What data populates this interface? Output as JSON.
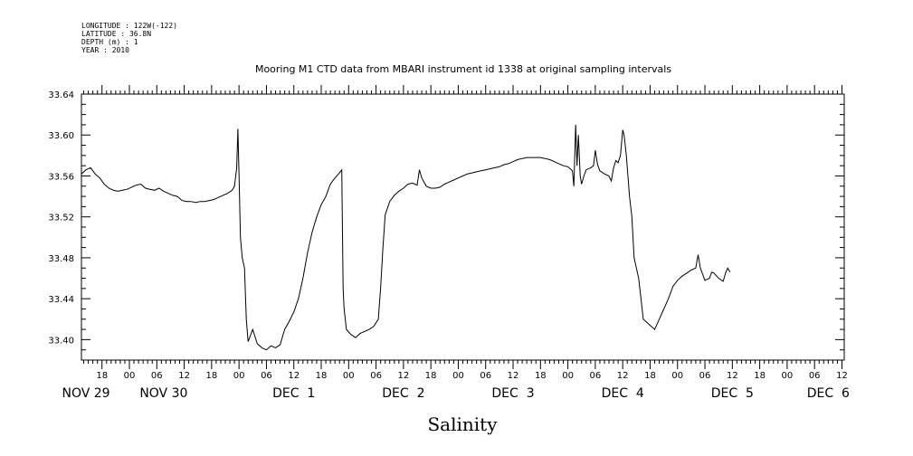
{
  "chart_data": {
    "type": "line",
    "meta": [
      "LONGITUDE : 122W(-122)",
      "LATITUDE : 36.8N",
      "DEPTH (m) : 1",
      "YEAR : 2010"
    ],
    "title": "Mooring M1 CTD data from MBARI instrument id 1338 at original sampling intervals",
    "xlabel": "Salinity",
    "ylabel": "",
    "x_unit": "hours from 2010-11-29 00:00",
    "xlim": [
      13.5,
      180.5
    ],
    "ylim": [
      33.38,
      33.64
    ],
    "yticks": [
      "33.40",
      "33.44",
      "33.48",
      "33.52",
      "33.56",
      "33.60",
      "33.64"
    ],
    "hour_ticks": [
      {
        "x": 18,
        "label": "18"
      },
      {
        "x": 24,
        "label": "00"
      },
      {
        "x": 30,
        "label": "06"
      },
      {
        "x": 36,
        "label": "12"
      },
      {
        "x": 42,
        "label": "18"
      },
      {
        "x": 48,
        "label": "00"
      },
      {
        "x": 54,
        "label": "06"
      },
      {
        "x": 60,
        "label": "12"
      },
      {
        "x": 66,
        "label": "18"
      },
      {
        "x": 72,
        "label": "00"
      },
      {
        "x": 78,
        "label": "06"
      },
      {
        "x": 84,
        "label": "12"
      },
      {
        "x": 90,
        "label": "18"
      },
      {
        "x": 96,
        "label": "00"
      },
      {
        "x": 102,
        "label": "06"
      },
      {
        "x": 108,
        "label": "12"
      },
      {
        "x": 114,
        "label": "18"
      },
      {
        "x": 120,
        "label": "00"
      },
      {
        "x": 126,
        "label": "06"
      },
      {
        "x": 132,
        "label": "12"
      },
      {
        "x": 138,
        "label": "18"
      },
      {
        "x": 144,
        "label": "00"
      },
      {
        "x": 150,
        "label": "06"
      },
      {
        "x": 156,
        "label": "12"
      },
      {
        "x": 162,
        "label": "18"
      },
      {
        "x": 168,
        "label": "00"
      },
      {
        "x": 174,
        "label": "06"
      },
      {
        "x": 180,
        "label": "12"
      }
    ],
    "day_labels": [
      {
        "x": 14.5,
        "label": "NOV 29"
      },
      {
        "x": 31.5,
        "label": "NOV 30"
      },
      {
        "x": 60,
        "label": "DEC  1"
      },
      {
        "x": 84,
        "label": "DEC  2"
      },
      {
        "x": 108,
        "label": "DEC  3"
      },
      {
        "x": 132,
        "label": "DEC  4"
      },
      {
        "x": 156,
        "label": "DEC  5"
      },
      {
        "x": 177,
        "label": "DEC  6"
      }
    ],
    "series": [
      {
        "values": [
          [
            13.5,
            33.562
          ],
          [
            14.5,
            33.566
          ],
          [
            15.5,
            33.568
          ],
          [
            16.5,
            33.562
          ],
          [
            17.5,
            33.558
          ],
          [
            18.5,
            33.552
          ],
          [
            19.5,
            33.548
          ],
          [
            20.5,
            33.546
          ],
          [
            21.5,
            33.545
          ],
          [
            22.5,
            33.546
          ],
          [
            23.5,
            33.547
          ],
          [
            24.5,
            33.549
          ],
          [
            25.5,
            33.551
          ],
          [
            26.5,
            33.552
          ],
          [
            27.5,
            33.548
          ],
          [
            28.5,
            33.547
          ],
          [
            29.5,
            33.546
          ],
          [
            30.5,
            33.548
          ],
          [
            31.5,
            33.545
          ],
          [
            32.5,
            33.543
          ],
          [
            33.5,
            33.541
          ],
          [
            34.5,
            33.54
          ],
          [
            35.5,
            33.536
          ],
          [
            36.5,
            33.535
          ],
          [
            37.5,
            33.535
          ],
          [
            38.5,
            33.534
          ],
          [
            39.5,
            33.535
          ],
          [
            40.5,
            33.535
          ],
          [
            41.5,
            33.536
          ],
          [
            42.5,
            33.537
          ],
          [
            43.5,
            33.539
          ],
          [
            44.5,
            33.541
          ],
          [
            45.5,
            33.543
          ],
          [
            46.5,
            33.546
          ],
          [
            47.0,
            33.55
          ],
          [
            47.5,
            33.568
          ],
          [
            47.75,
            33.606
          ],
          [
            48.0,
            33.56
          ],
          [
            48.3,
            33.5
          ],
          [
            48.7,
            33.48
          ],
          [
            49.2,
            33.47
          ],
          [
            49.6,
            33.42
          ],
          [
            50.0,
            33.398
          ],
          [
            51.0,
            33.41
          ],
          [
            52.0,
            33.396
          ],
          [
            53.0,
            33.392
          ],
          [
            54.0,
            33.39
          ],
          [
            55.0,
            33.394
          ],
          [
            56.0,
            33.392
          ],
          [
            57.0,
            33.395
          ],
          [
            58.0,
            33.41
          ],
          [
            59.0,
            33.418
          ],
          [
            60.0,
            33.427
          ],
          [
            61.0,
            33.44
          ],
          [
            62.0,
            33.46
          ],
          [
            63.0,
            33.485
          ],
          [
            64.0,
            33.505
          ],
          [
            65.0,
            33.52
          ],
          [
            66.0,
            33.532
          ],
          [
            67.0,
            33.54
          ],
          [
            68.0,
            33.552
          ],
          [
            69.0,
            33.558
          ],
          [
            70.0,
            33.563
          ],
          [
            70.5,
            33.566
          ],
          [
            70.8,
            33.45
          ],
          [
            71.0,
            33.43
          ],
          [
            71.5,
            33.41
          ],
          [
            72.5,
            33.405
          ],
          [
            73.5,
            33.402
          ],
          [
            74.5,
            33.406
          ],
          [
            75.5,
            33.408
          ],
          [
            76.5,
            33.41
          ],
          [
            77.5,
            33.413
          ],
          [
            78.5,
            33.42
          ],
          [
            79.0,
            33.45
          ],
          [
            79.5,
            33.49
          ],
          [
            80.0,
            33.522
          ],
          [
            81.0,
            33.535
          ],
          [
            82.0,
            33.541
          ],
          [
            83.0,
            33.545
          ],
          [
            84.0,
            33.548
          ],
          [
            85.0,
            33.552
          ],
          [
            86.0,
            33.553
          ],
          [
            87.0,
            33.551
          ],
          [
            87.5,
            33.566
          ],
          [
            88.0,
            33.558
          ],
          [
            89.0,
            33.55
          ],
          [
            90.0,
            33.548
          ],
          [
            91.0,
            33.548
          ],
          [
            92.0,
            33.549
          ],
          [
            93.0,
            33.552
          ],
          [
            94.0,
            33.554
          ],
          [
            95.0,
            33.556
          ],
          [
            96.0,
            33.558
          ],
          [
            97.0,
            33.56
          ],
          [
            98.0,
            33.562
          ],
          [
            99.0,
            33.563
          ],
          [
            100.0,
            33.564
          ],
          [
            101.0,
            33.565
          ],
          [
            102.0,
            33.566
          ],
          [
            103.0,
            33.567
          ],
          [
            104.0,
            33.568
          ],
          [
            105.0,
            33.569
          ],
          [
            106.0,
            33.571
          ],
          [
            107.0,
            33.572
          ],
          [
            108.0,
            33.574
          ],
          [
            109.0,
            33.576
          ],
          [
            110.0,
            33.577
          ],
          [
            111.0,
            33.578
          ],
          [
            112.0,
            33.578
          ],
          [
            113.0,
            33.578
          ],
          [
            114.0,
            33.578
          ],
          [
            115.0,
            33.577
          ],
          [
            116.0,
            33.576
          ],
          [
            117.0,
            33.574
          ],
          [
            118.0,
            33.572
          ],
          [
            119.0,
            33.57
          ],
          [
            120.0,
            33.569
          ],
          [
            121.0,
            33.565
          ],
          [
            121.3,
            33.55
          ],
          [
            121.7,
            33.61
          ],
          [
            122.0,
            33.57
          ],
          [
            122.3,
            33.6
          ],
          [
            122.7,
            33.56
          ],
          [
            123.0,
            33.552
          ],
          [
            123.5,
            33.56
          ],
          [
            124.0,
            33.566
          ],
          [
            125.0,
            33.568
          ],
          [
            125.6,
            33.57
          ],
          [
            126.0,
            33.585
          ],
          [
            126.5,
            33.571
          ],
          [
            127.0,
            33.565
          ],
          [
            128.0,
            33.562
          ],
          [
            129.0,
            33.56
          ],
          [
            129.5,
            33.555
          ],
          [
            130.0,
            33.568
          ],
          [
            130.5,
            33.575
          ],
          [
            131.0,
            33.573
          ],
          [
            131.5,
            33.58
          ],
          [
            132.0,
            33.605
          ],
          [
            132.3,
            33.6
          ],
          [
            132.8,
            33.58
          ],
          [
            133.5,
            33.54
          ],
          [
            134.0,
            33.52
          ],
          [
            134.5,
            33.48
          ],
          [
            135.0,
            33.47
          ],
          [
            135.5,
            33.46
          ],
          [
            136.0,
            33.44
          ],
          [
            136.5,
            33.42
          ],
          [
            137.0,
            33.418
          ],
          [
            138.0,
            33.414
          ],
          [
            139.0,
            33.41
          ],
          [
            140.0,
            33.42
          ],
          [
            141.0,
            33.43
          ],
          [
            142.0,
            33.44
          ],
          [
            143.0,
            33.452
          ],
          [
            144.0,
            33.458
          ],
          [
            145.0,
            33.462
          ],
          [
            146.0,
            33.465
          ],
          [
            147.0,
            33.468
          ],
          [
            148.0,
            33.47
          ],
          [
            148.5,
            33.483
          ],
          [
            149.0,
            33.47
          ],
          [
            149.5,
            33.464
          ],
          [
            150.0,
            33.458
          ],
          [
            151.0,
            33.46
          ],
          [
            151.5,
            33.466
          ],
          [
            152.0,
            33.465
          ],
          [
            153.0,
            33.46
          ],
          [
            154.0,
            33.457
          ],
          [
            154.5,
            33.465
          ],
          [
            155.0,
            33.47
          ],
          [
            155.5,
            33.466
          ]
        ]
      }
    ]
  }
}
